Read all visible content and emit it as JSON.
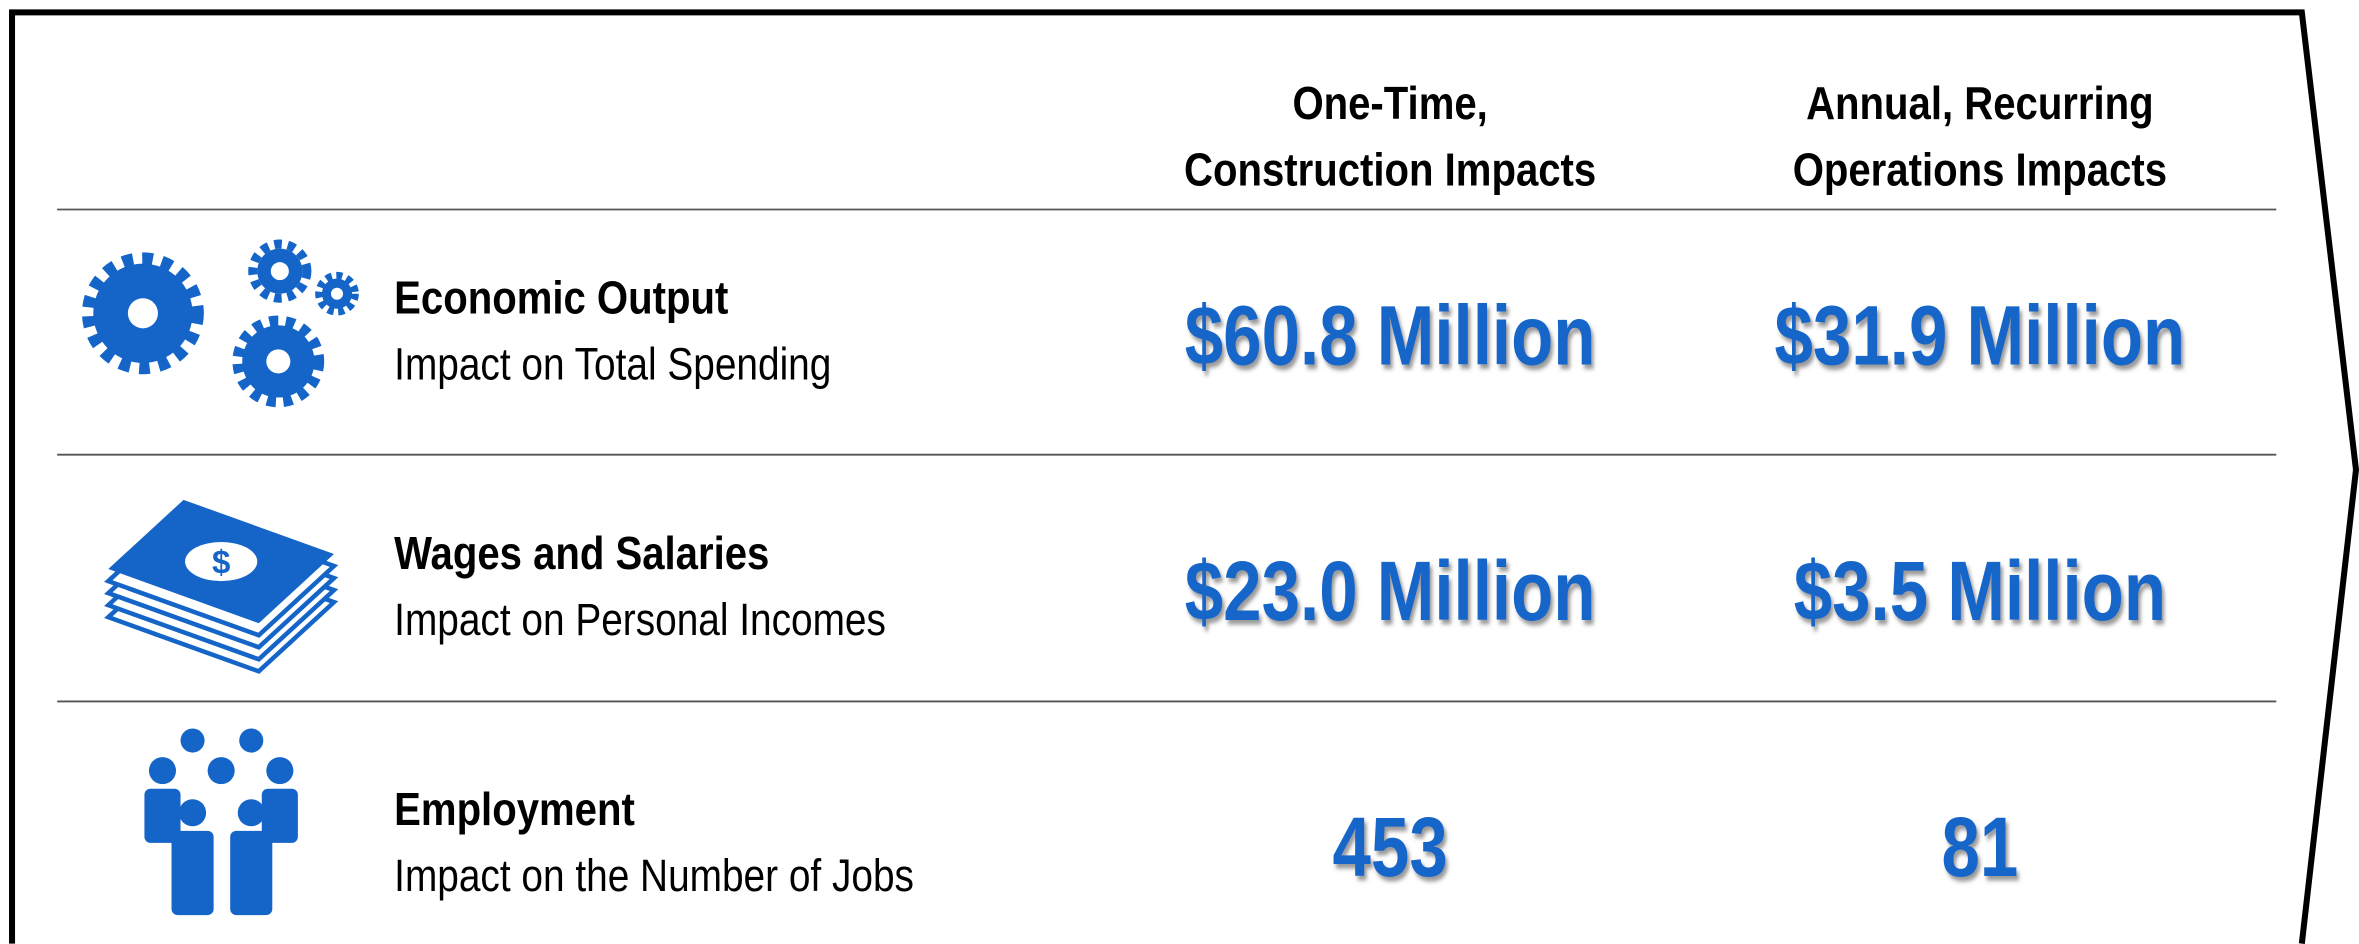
{
  "table": {
    "columns": [
      "One-Time,\nConstruction Impacts",
      "Annual, Recurring\nOperations Impacts"
    ],
    "rows": [
      {
        "title": "Economic Output",
        "subtitle": "Impact on Total Spending",
        "values": [
          "$60.8 Million",
          "$31.9 Million"
        ]
      },
      {
        "title": "Wages and Salaries",
        "subtitle": "Impact on Personal Incomes",
        "values": [
          "$23.0 Million",
          "$3.5 Million"
        ]
      },
      {
        "title": "Employment",
        "subtitle": "Impact on the Number of Jobs",
        "values": [
          "453",
          "81"
        ]
      }
    ]
  }
}
